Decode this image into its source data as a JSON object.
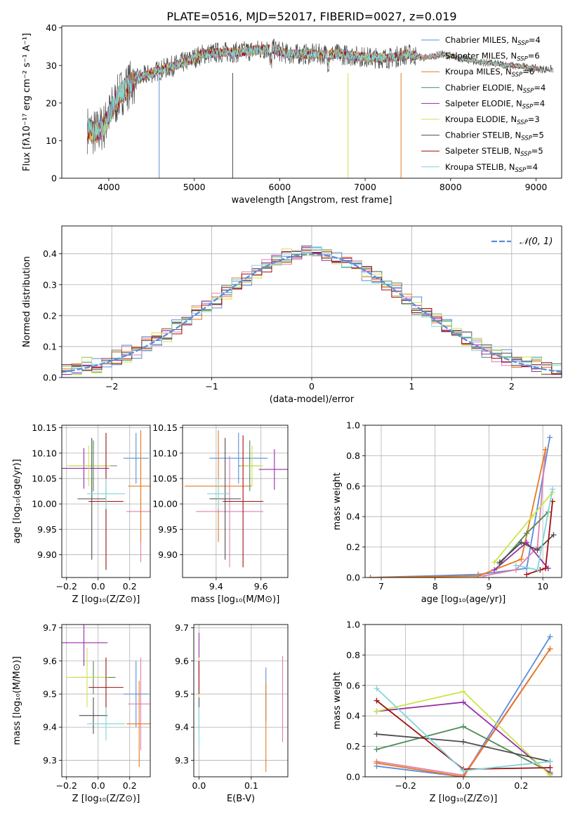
{
  "figure": {
    "title": "PLATE=0516, MJD=52017, FIBERID=0027, z=0.019"
  },
  "chart_data": [
    {
      "type": "line",
      "panel": "spectrum",
      "title": "PLATE=0516, MJD=52017, FIBERID=0027, z=0.019",
      "xlabel": "wavelength [Angstrom, rest frame]",
      "ylabel": "Flux [fλ10⁻¹⁷ erg cm⁻² s⁻¹ A⁻¹]",
      "xlim": [
        3450,
        9300
      ],
      "ylim": [
        0,
        40.5
      ],
      "xticks": [
        4000,
        5000,
        6000,
        7000,
        8000,
        9000
      ],
      "yticks": [
        0,
        10,
        20,
        30,
        40
      ],
      "grid": false,
      "legend": "top-right",
      "continuum": {
        "x": [
          3750,
          3850,
          3950,
          4050,
          4150,
          4300,
          4500,
          4700,
          4900,
          5100,
          5300,
          5500,
          5700,
          5900,
          6100,
          6300,
          6500,
          6700,
          6900,
          7100,
          7300,
          7500,
          7700,
          7900,
          8100,
          8300,
          8500,
          8700,
          8900,
          9050
        ],
        "y": [
          13,
          12,
          14,
          19,
          23,
          26,
          28,
          29.5,
          31,
          33,
          33.5,
          33.5,
          34,
          34.5,
          33,
          33,
          33,
          33,
          32.5,
          32,
          32,
          33,
          32,
          33,
          32,
          31,
          30.5,
          30,
          29.5,
          29
        ]
      },
      "series": [
        {
          "name": "Chabrier MILES, N_SSP=4",
          "color": "#5b8ddb"
        },
        {
          "name": "Salpeter MILES, N_SSP=6",
          "color": "#e07fb0"
        },
        {
          "name": "Kroupa MILES, N_SSP=6",
          "color": "#e8791f"
        },
        {
          "name": "Chabrier ELODIE, N_SSP=4",
          "color": "#4f8a54"
        },
        {
          "name": "Salpeter ELODIE, N_SSP=4",
          "color": "#9a2ca8"
        },
        {
          "name": "Kroupa ELODIE, N_SSP=3",
          "color": "#cde34a"
        },
        {
          "name": "Chabrier STELIB, N_SSP=5",
          "color": "#4d4d4d"
        },
        {
          "name": "Salpeter STELIB, N_SSP=5",
          "color": "#a00f0f"
        },
        {
          "name": "Kroupa STELIB, N_SSP=4",
          "color": "#7fd6dc"
        }
      ],
      "legend_entries": [
        {
          "label": "Chabrier MILES, N",
          "sub": "SSP",
          "tail": "=4"
        },
        {
          "label": "Salpeter MILES, N",
          "sub": "SSP",
          "tail": "=6"
        },
        {
          "label": "Kroupa MILES, N",
          "sub": "SSP",
          "tail": "=6"
        },
        {
          "label": "Chabrier ELODIE, N",
          "sub": "SSP",
          "tail": "=4"
        },
        {
          "label": "Salpeter ELODIE, N",
          "sub": "SSP",
          "tail": "=4"
        },
        {
          "label": "Kroupa ELODIE, N",
          "sub": "SSP",
          "tail": "=3"
        },
        {
          "label": "Chabrier STELIB, N",
          "sub": "SSP",
          "tail": "=5"
        },
        {
          "label": "Salpeter STELIB, N",
          "sub": "SSP",
          "tail": "=5"
        },
        {
          "label": "Kroupa STELIB, N",
          "sub": "SSP",
          "tail": "=4"
        }
      ]
    },
    {
      "type": "histogram",
      "panel": "residuals",
      "xlabel": "(data-model)/error",
      "ylabel": "Normed distribution",
      "xlim": [
        -2.5,
        2.5
      ],
      "ylim": [
        0,
        0.49
      ],
      "xticks": [
        -2,
        -1,
        0,
        1,
        2
      ],
      "yticks": [
        0.0,
        0.1,
        0.2,
        0.3,
        0.4
      ],
      "grid": true,
      "legend": "top-right",
      "reference_curve": "N(0,1)",
      "reference_label": "𝒩(0, 1)",
      "bin_width": 0.1,
      "series": [
        {
          "color": "#5b8ddb",
          "jitter": 0.03
        },
        {
          "color": "#e07fb0",
          "jitter": 0.025
        },
        {
          "color": "#e8791f",
          "jitter": 0.022
        },
        {
          "color": "#4f8a54",
          "jitter": 0.028
        },
        {
          "color": "#9a2ca8",
          "jitter": 0.02
        },
        {
          "color": "#cde34a",
          "jitter": 0.03
        },
        {
          "color": "#4d4d4d",
          "jitter": 0.018
        },
        {
          "color": "#a00f0f",
          "jitter": 0.022
        },
        {
          "color": "#7fd6dc",
          "jitter": 0.02
        }
      ]
    },
    {
      "type": "errorbar",
      "panel": "age-vs-Z",
      "xlabel": "Z [log₁₀(Z/Z⊙)]",
      "ylabel": "age  [log₁₀(age/yr)]",
      "xlim": [
        -0.23,
        0.33
      ],
      "ylim": [
        9.855,
        10.155
      ],
      "xticks": [
        -0.2,
        0.0,
        0.2
      ],
      "yticks": [
        9.9,
        9.95,
        10.0,
        10.05,
        10.1,
        10.15
      ],
      "grid": true,
      "points": [
        {
          "x": 0.24,
          "xerr": 0.08,
          "y": 10.09,
          "yerr": 0.05,
          "color": "#5b8ddb"
        },
        {
          "x": 0.27,
          "xerr": 0.09,
          "y": 9.985,
          "yerr": 0.1,
          "color": "#e07fb0"
        },
        {
          "x": 0.27,
          "xerr": 0.08,
          "y": 10.035,
          "yerr": 0.11,
          "color": "#e8791f"
        },
        {
          "x": -0.03,
          "xerr": 0.15,
          "y": 10.075,
          "yerr": 0.05,
          "color": "#4f8a54"
        },
        {
          "x": -0.09,
          "xerr": 0.16,
          "y": 10.07,
          "yerr": 0.04,
          "color": "#9a2ca8"
        },
        {
          "x": -0.06,
          "xerr": 0.14,
          "y": 10.075,
          "yerr": 0.04,
          "color": "#cde34a"
        },
        {
          "x": -0.04,
          "xerr": 0.09,
          "y": 10.01,
          "yerr": 0.12,
          "color": "#4d4d4d"
        },
        {
          "x": 0.05,
          "xerr": 0.11,
          "y": 10.005,
          "yerr": 0.135,
          "color": "#a00f0f"
        },
        {
          "x": 0.05,
          "xerr": 0.12,
          "y": 10.02,
          "yerr": 0.03,
          "color": "#7fd6dc"
        }
      ]
    },
    {
      "type": "errorbar",
      "panel": "age-vs-mass",
      "xlabel": "mass [log₁₀(M/M⊙)]",
      "ylabel": "",
      "xlim": [
        9.25,
        9.72
      ],
      "ylim": [
        9.855,
        10.155
      ],
      "xticks": [
        9.4,
        9.6
      ],
      "yticks": [
        9.9,
        9.95,
        10.0,
        10.05,
        10.1,
        10.15
      ],
      "grid": true,
      "points": [
        {
          "x": 9.5,
          "xerr": 0.13,
          "y": 10.09,
          "yerr": 0.05,
          "color": "#5b8ddb"
        },
        {
          "x": 9.46,
          "xerr": 0.15,
          "y": 9.985,
          "yerr": 0.11,
          "color": "#e07fb0"
        },
        {
          "x": 9.41,
          "xerr": 0.15,
          "y": 10.035,
          "yerr": 0.11,
          "color": "#e8791f"
        },
        {
          "x": 9.55,
          "xerr": 0.05,
          "y": 10.075,
          "yerr": 0.05,
          "color": "#4f8a54"
        },
        {
          "x": 9.66,
          "xerr": 0.07,
          "y": 10.068,
          "yerr": 0.04,
          "color": "#9a2ca8"
        },
        {
          "x": 9.56,
          "xerr": 0.05,
          "y": 10.075,
          "yerr": 0.04,
          "color": "#cde34a"
        },
        {
          "x": 9.44,
          "xerr": 0.07,
          "y": 10.01,
          "yerr": 0.12,
          "color": "#4d4d4d"
        },
        {
          "x": 9.52,
          "xerr": 0.09,
          "y": 10.005,
          "yerr": 0.13,
          "color": "#a00f0f"
        },
        {
          "x": 9.41,
          "xerr": 0.05,
          "y": 10.02,
          "yerr": 0.03,
          "color": "#7fd6dc"
        }
      ]
    },
    {
      "type": "line",
      "panel": "mass-weight-vs-age",
      "xlabel": "age  [log₁₀(age/yr)]",
      "ylabel": "mass weight",
      "xlim": [
        6.7,
        10.35
      ],
      "ylim": [
        0,
        1.0
      ],
      "xticks": [
        7,
        8,
        9,
        10
      ],
      "yticks": [
        0.0,
        0.2,
        0.4,
        0.6,
        0.8,
        1.0
      ],
      "grid": true,
      "series": [
        {
          "color": "#5b8ddb",
          "x": [
            6.8,
            8.8,
            9.7,
            10.13
          ],
          "y": [
            0.0,
            0.02,
            0.06,
            0.92
          ]
        },
        {
          "color": "#e07fb0",
          "x": [
            8.9,
            9.5,
            9.9,
            10.05
          ],
          "y": [
            0.01,
            0.05,
            0.2,
            0.84
          ]
        },
        {
          "color": "#e8791f",
          "x": [
            6.8,
            8.8,
            9.6,
            10.05
          ],
          "y": [
            0.0,
            0.01,
            0.12,
            0.84
          ]
        },
        {
          "color": "#4f8a54",
          "x": [
            9.2,
            9.7,
            10.1
          ],
          "y": [
            0.09,
            0.29,
            0.43
          ]
        },
        {
          "color": "#9a2ca8",
          "x": [
            9.1,
            9.7,
            10.1
          ],
          "y": [
            0.05,
            0.23,
            0.06
          ]
        },
        {
          "color": "#cde34a",
          "x": [
            9.1,
            9.8,
            10.18
          ],
          "y": [
            0.1,
            0.4,
            0.56
          ]
        },
        {
          "color": "#4d4d4d",
          "x": [
            9.2,
            9.6,
            9.9,
            10.2
          ],
          "y": [
            0.1,
            0.23,
            0.18,
            0.28
          ]
        },
        {
          "color": "#a00f0f",
          "x": [
            9.7,
            9.95,
            10.05,
            10.18
          ],
          "y": [
            0.02,
            0.05,
            0.06,
            0.5
          ]
        },
        {
          "color": "#7fd6dc",
          "x": [
            9.5,
            9.9,
            10.18
          ],
          "y": [
            0.08,
            0.05,
            0.58
          ]
        }
      ]
    },
    {
      "type": "errorbar",
      "panel": "mass-vs-Z",
      "xlabel": "Z [log₁₀(Z/Z⊙)]",
      "ylabel": "mass [log₁₀(M/M⊙)]",
      "xlim": [
        -0.23,
        0.33
      ],
      "ylim": [
        9.25,
        9.71
      ],
      "xticks": [
        -0.2,
        0.0,
        0.2
      ],
      "yticks": [
        9.3,
        9.4,
        9.5,
        9.6,
        9.7
      ],
      "grid": true,
      "points": [
        {
          "x": 0.24,
          "xerr": 0.08,
          "y": 9.5,
          "yerr": 0.1,
          "color": "#5b8ddb"
        },
        {
          "x": 0.27,
          "xerr": 0.08,
          "y": 9.47,
          "yerr": 0.14,
          "color": "#e07fb0"
        },
        {
          "x": 0.26,
          "xerr": 0.08,
          "y": 9.41,
          "yerr": 0.13,
          "color": "#e8791f"
        },
        {
          "x": -0.03,
          "xerr": 0.14,
          "y": 9.55,
          "yerr": 0.05,
          "color": "#4f8a54"
        },
        {
          "x": -0.09,
          "xerr": 0.15,
          "y": 9.655,
          "yerr": 0.07,
          "color": "#9a2ca8"
        },
        {
          "x": -0.07,
          "xerr": 0.13,
          "y": 9.55,
          "yerr": 0.09,
          "color": "#cde34a"
        },
        {
          "x": -0.03,
          "xerr": 0.09,
          "y": 9.435,
          "yerr": 0.055,
          "color": "#4d4d4d"
        },
        {
          "x": 0.05,
          "xerr": 0.11,
          "y": 9.52,
          "yerr": 0.09,
          "color": "#a00f0f"
        },
        {
          "x": 0.05,
          "xerr": 0.12,
          "y": 9.41,
          "yerr": 0.05,
          "color": "#7fd6dc"
        }
      ]
    },
    {
      "type": "errorbar",
      "panel": "mass-vs-EBV",
      "xlabel": "E(B-V)",
      "ylabel": "",
      "xlim": [
        -0.01,
        0.17
      ],
      "ylim": [
        9.25,
        9.71
      ],
      "xticks": [
        0.0,
        0.1
      ],
      "yticks": [
        9.3,
        9.4,
        9.5,
        9.6,
        9.7
      ],
      "grid": true,
      "points": [
        {
          "x": 0.128,
          "xerr": 0,
          "y": 9.5,
          "yerr": 0.08,
          "color": "#5b8ddb"
        },
        {
          "x": 0.16,
          "xerr": 0,
          "y": 9.485,
          "yerr": 0.13,
          "color": "#e07fb0"
        },
        {
          "x": 0.128,
          "xerr": 0,
          "y": 9.4,
          "yerr": 0.135,
          "color": "#e8791f"
        },
        {
          "x": 0.0,
          "xerr": 0,
          "y": 9.55,
          "yerr": 0.05,
          "color": "#4f8a54"
        },
        {
          "x": 0.0,
          "xerr": 0,
          "y": 9.62,
          "yerr": 0.065,
          "color": "#9a2ca8"
        },
        {
          "x": 0.0,
          "xerr": 0,
          "y": 9.55,
          "yerr": 0.06,
          "color": "#cde34a"
        },
        {
          "x": 0.0,
          "xerr": 0,
          "y": 9.44,
          "yerr": 0.05,
          "color": "#4d4d4d"
        },
        {
          "x": 0.0,
          "xerr": 0,
          "y": 9.55,
          "yerr": 0.05,
          "color": "#a00f0f"
        },
        {
          "x": 0.0,
          "xerr": 0,
          "y": 9.4,
          "yerr": 0.06,
          "color": "#7fd6dc"
        }
      ]
    },
    {
      "type": "line",
      "panel": "mass-weight-vs-Z",
      "xlabel": "Z [log₁₀(Z/Z⊙)]",
      "ylabel": "mass weight",
      "xlim": [
        -0.34,
        0.34
      ],
      "ylim": [
        0,
        1.0
      ],
      "xticks": [
        -0.2,
        0.0,
        0.2
      ],
      "yticks": [
        0.0,
        0.2,
        0.4,
        0.6,
        0.8,
        1.0
      ],
      "grid": true,
      "series": [
        {
          "color": "#5b8ddb",
          "x": [
            -0.3,
            0.0,
            0.3
          ],
          "y": [
            0.07,
            0.0,
            0.92
          ]
        },
        {
          "color": "#e07fb0",
          "x": [
            -0.3,
            0.0,
            0.3
          ],
          "y": [
            0.1,
            0.01,
            0.84
          ]
        },
        {
          "color": "#e8791f",
          "x": [
            -0.3,
            0.0,
            0.3
          ],
          "y": [
            0.09,
            0.0,
            0.84
          ]
        },
        {
          "color": "#4f8a54",
          "x": [
            -0.3,
            0.0,
            0.3
          ],
          "y": [
            0.18,
            0.33,
            0.03
          ]
        },
        {
          "color": "#9a2ca8",
          "x": [
            -0.3,
            0.0,
            0.3
          ],
          "y": [
            0.43,
            0.49,
            0.02
          ]
        },
        {
          "color": "#cde34a",
          "x": [
            -0.3,
            0.0,
            0.3
          ],
          "y": [
            0.43,
            0.56,
            0.01
          ]
        },
        {
          "color": "#4d4d4d",
          "x": [
            -0.3,
            0.0,
            0.3
          ],
          "y": [
            0.28,
            0.23,
            0.1
          ]
        },
        {
          "color": "#a00f0f",
          "x": [
            -0.3,
            0.0,
            0.3
          ],
          "y": [
            0.5,
            0.05,
            0.06
          ]
        },
        {
          "color": "#7fd6dc",
          "x": [
            -0.3,
            0.0,
            0.3
          ],
          "y": [
            0.58,
            0.04,
            0.1
          ]
        }
      ]
    }
  ]
}
